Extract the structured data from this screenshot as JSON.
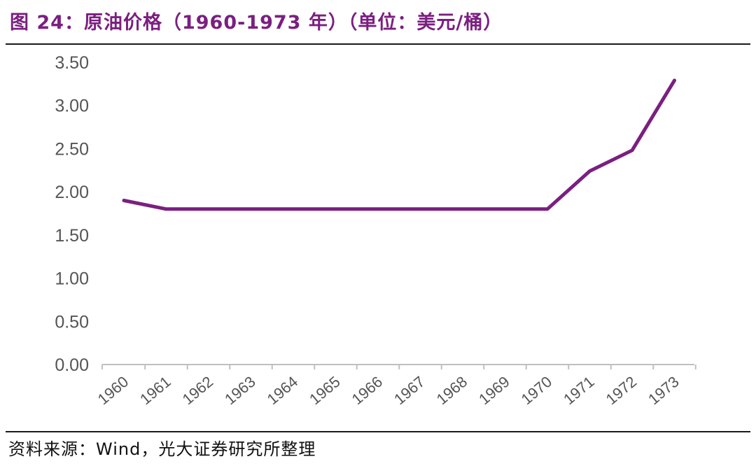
{
  "header": {
    "title": "图 24：原油价格（1960-1973 年）（单位：美元/桶）"
  },
  "footer": {
    "source": "资料来源：Wind，光大证券研究所整理"
  },
  "colors": {
    "title": "#7b1f80",
    "line": "#7b1f80",
    "axis": "#bfbfbf",
    "tick_text": "#555555"
  },
  "chart_data": {
    "type": "line",
    "title": "图 24：原油价格（1960-1973 年）（单位：美元/桶）",
    "xlabel": "",
    "ylabel": "",
    "ylim": [
      0,
      3.5
    ],
    "yticks": [
      "0.00",
      "0.50",
      "1.00",
      "1.50",
      "2.00",
      "2.50",
      "3.00",
      "3.50"
    ],
    "categories": [
      "1960",
      "1961",
      "1962",
      "1963",
      "1964",
      "1965",
      "1966",
      "1967",
      "1968",
      "1969",
      "1970",
      "1971",
      "1972",
      "1973"
    ],
    "series": [
      {
        "values": [
          1.9,
          1.8,
          1.8,
          1.8,
          1.8,
          1.8,
          1.8,
          1.8,
          1.8,
          1.8,
          1.8,
          2.24,
          2.48,
          3.29
        ]
      }
    ],
    "grid": false,
    "legend": "none"
  }
}
